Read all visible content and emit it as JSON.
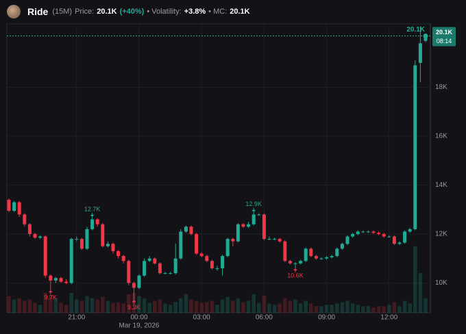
{
  "chart_data": {
    "type": "candlestick",
    "header": {
      "title": "Ride",
      "interval": "(15M)",
      "price_label": "Price:",
      "price": "20.1K",
      "change": "(+40%)",
      "volatility_label": "• Volatility:",
      "volatility": "+3.8%",
      "mc_label": "• MC:",
      "mc": "20.1K"
    },
    "x": [
      "2026-03-18T17:45",
      "2026-03-18T18:00",
      "2026-03-18T18:15",
      "2026-03-18T18:30",
      "2026-03-18T18:45",
      "2026-03-18T19:00",
      "2026-03-18T19:15",
      "2026-03-18T19:30",
      "2026-03-18T19:45",
      "2026-03-18T20:00",
      "2026-03-18T20:15",
      "2026-03-18T20:30",
      "2026-03-18T20:45",
      "2026-03-18T21:00",
      "2026-03-18T21:15",
      "2026-03-18T21:30",
      "2026-03-18T21:45",
      "2026-03-18T22:00",
      "2026-03-18T22:15",
      "2026-03-18T22:30",
      "2026-03-18T22:45",
      "2026-03-18T23:00",
      "2026-03-18T23:15",
      "2026-03-18T23:30",
      "2026-03-18T23:45",
      "2026-03-19T00:00",
      "2026-03-19T00:15",
      "2026-03-19T00:30",
      "2026-03-19T00:45",
      "2026-03-19T01:00",
      "2026-03-19T01:15",
      "2026-03-19T01:30",
      "2026-03-19T01:45",
      "2026-03-19T02:00",
      "2026-03-19T02:15",
      "2026-03-19T02:30",
      "2026-03-19T02:45",
      "2026-03-19T03:00",
      "2026-03-19T03:15",
      "2026-03-19T03:30",
      "2026-03-19T03:45",
      "2026-03-19T04:00",
      "2026-03-19T04:15",
      "2026-03-19T04:30",
      "2026-03-19T04:45",
      "2026-03-19T05:00",
      "2026-03-19T05:15",
      "2026-03-19T05:30",
      "2026-03-19T05:45",
      "2026-03-19T06:00",
      "2026-03-19T06:15",
      "2026-03-19T06:30",
      "2026-03-19T06:45",
      "2026-03-19T07:00",
      "2026-03-19T07:15",
      "2026-03-19T07:30",
      "2026-03-19T07:45",
      "2026-03-19T08:00",
      "2026-03-19T08:15",
      "2026-03-19T08:30",
      "2026-03-19T08:45",
      "2026-03-19T09:00",
      "2026-03-19T09:15",
      "2026-03-19T09:30",
      "2026-03-19T09:45",
      "2026-03-19T10:00",
      "2026-03-19T10:15",
      "2026-03-19T10:30",
      "2026-03-19T10:45",
      "2026-03-19T11:00",
      "2026-03-19T11:15",
      "2026-03-19T11:30",
      "2026-03-19T11:45",
      "2026-03-19T12:00",
      "2026-03-19T12:15",
      "2026-03-19T12:30",
      "2026-03-19T12:45",
      "2026-03-19T13:00",
      "2026-03-19T13:15",
      "2026-03-19T13:30",
      "2026-03-19T13:45"
    ],
    "open": [
      13400,
      12950,
      13300,
      12800,
      12400,
      12000,
      11850,
      11900,
      10300,
      10100,
      10200,
      10050,
      10000,
      11800,
      11800,
      11400,
      12200,
      12600,
      12400,
      11500,
      11600,
      11300,
      11100,
      10900,
      10000,
      9800,
      10300,
      10900,
      11000,
      10800,
      10400,
      10400,
      10400,
      11000,
      12100,
      12300,
      12000,
      11200,
      11100,
      10900,
      10600,
      10600,
      11100,
      11800,
      11700,
      12400,
      12300,
      12400,
      12800,
      12800,
      11800,
      11800,
      11800,
      11700,
      10900,
      10800,
      10800,
      10900,
      11400,
      11100,
      11000,
      11000,
      11050,
      11100,
      11400,
      11600,
      11900,
      12000,
      12100,
      12100,
      12100,
      12050,
      12000,
      11900,
      11900,
      11600,
      11650,
      12100,
      12200,
      19000,
      19900
    ],
    "high": [
      13450,
      13350,
      13350,
      12850,
      12450,
      12050,
      11950,
      11950,
      10350,
      10250,
      10250,
      10150,
      11850,
      11900,
      11850,
      12300,
      12700,
      12650,
      12450,
      11700,
      11650,
      11350,
      11150,
      10950,
      10050,
      10350,
      11000,
      11100,
      11050,
      10850,
      10450,
      10450,
      11600,
      12200,
      12350,
      12350,
      12050,
      11250,
      11150,
      10950,
      10700,
      11150,
      11850,
      11850,
      12450,
      12450,
      12500,
      12900,
      12850,
      12850,
      11900,
      11850,
      11850,
      11750,
      10950,
      10850,
      10950,
      11450,
      11450,
      11150,
      11050,
      11100,
      11150,
      11450,
      11650,
      11950,
      12050,
      12150,
      12150,
      12150,
      12150,
      12100,
      12050,
      11950,
      11950,
      11700,
      12150,
      12250,
      19100,
      20500,
      20200
    ],
    "low": [
      12900,
      12900,
      12700,
      12300,
      11900,
      11800,
      11800,
      10200,
      9700,
      10000,
      10000,
      9950,
      9950,
      11700,
      11350,
      11350,
      12150,
      12300,
      11450,
      11450,
      11200,
      11000,
      10800,
      9900,
      9300,
      9750,
      10250,
      10850,
      10750,
      10350,
      10350,
      10350,
      10350,
      10950,
      12050,
      11950,
      11150,
      11050,
      10850,
      10550,
      10500,
      10300,
      11050,
      11500,
      11650,
      12250,
      12250,
      12350,
      12750,
      11750,
      11750,
      11750,
      11650,
      10850,
      10750,
      10600,
      10750,
      10850,
      11050,
      10950,
      10950,
      10950,
      11000,
      11050,
      11350,
      11550,
      11850,
      11950,
      12050,
      12050,
      12000,
      11950,
      11850,
      11850,
      11550,
      11550,
      11600,
      12050,
      12150,
      18200,
      19850
    ],
    "close": [
      12950,
      13300,
      12800,
      12400,
      12000,
      11850,
      11900,
      10300,
      10100,
      10200,
      10050,
      10000,
      11800,
      11800,
      11400,
      12200,
      12600,
      12400,
      11500,
      11600,
      11300,
      11100,
      10900,
      10000,
      9800,
      10300,
      10900,
      11000,
      10800,
      10400,
      10400,
      10400,
      11000,
      12100,
      12300,
      12000,
      11200,
      11100,
      10900,
      10600,
      10600,
      11100,
      11800,
      11700,
      12400,
      12300,
      12400,
      12800,
      12800,
      11800,
      11800,
      11800,
      11700,
      10900,
      10800,
      10800,
      10900,
      11400,
      11100,
      11000,
      11000,
      11050,
      11100,
      11400,
      11600,
      11900,
      12000,
      12100,
      12100,
      12100,
      12050,
      12000,
      11900,
      11900,
      11600,
      11650,
      12100,
      12200,
      18900,
      19800,
      20100
    ],
    "volume": [
      25,
      20,
      22,
      18,
      20,
      15,
      12,
      30,
      26,
      22,
      15,
      12,
      30,
      20,
      18,
      25,
      22,
      20,
      24,
      18,
      15,
      16,
      14,
      28,
      30,
      25,
      22,
      15,
      18,
      20,
      14,
      12,
      16,
      22,
      28,
      20,
      18,
      15,
      16,
      18,
      12,
      20,
      24,
      18,
      22,
      16,
      18,
      28,
      15,
      26,
      14,
      12,
      14,
      22,
      18,
      20,
      14,
      18,
      14,
      10,
      10,
      12,
      12,
      14,
      16,
      18,
      14,
      12,
      10,
      10,
      8,
      10,
      10,
      12,
      16,
      10,
      18,
      14,
      100,
      60,
      22
    ],
    "volume_lim": [
      0,
      140
    ],
    "up_color": "#22ab94",
    "down_color": "#f23645",
    "ylim": [
      8780,
      20590
    ],
    "yticks": [
      {
        "value": 10000,
        "label": "10K"
      },
      {
        "value": 12000,
        "label": "12K"
      },
      {
        "value": 14000,
        "label": "14K"
      },
      {
        "value": 16000,
        "label": "16K"
      },
      {
        "value": 18000,
        "label": "18K"
      }
    ],
    "xticks": [
      {
        "value": "2026-03-18T21:00",
        "label": "21:00"
      },
      {
        "value": "2026-03-19T00:00",
        "label": "00:00"
      },
      {
        "value": "2026-03-19T03:00",
        "label": "03:00"
      },
      {
        "value": "2026-03-19T06:00",
        "label": "06:00"
      },
      {
        "value": "2026-03-19T09:00",
        "label": "09:00"
      },
      {
        "value": "2026-03-19T12:00",
        "label": "12:00"
      }
    ],
    "x_date_label": {
      "value": "2026-03-19T00:00",
      "label": "Mar 19, 2026"
    },
    "grid": true,
    "annotations": [
      {
        "x": "2026-03-18T19:45",
        "value": 9700,
        "label": "9.7K",
        "position": "below"
      },
      {
        "x": "2026-03-18T21:45",
        "value": 12700,
        "label": "12.7K",
        "position": "above"
      },
      {
        "x": "2026-03-18T23:45",
        "value": 9300,
        "label": "9.3K",
        "position": "below"
      },
      {
        "x": "2026-03-19T05:30",
        "value": 12900,
        "label": "12.9K",
        "position": "above"
      },
      {
        "x": "2026-03-19T07:30",
        "value": 10600,
        "label": "10.6K",
        "position": "below"
      }
    ],
    "last_price": {
      "value": 20100,
      "label": "20.1K",
      "countdown": "08:14"
    }
  }
}
